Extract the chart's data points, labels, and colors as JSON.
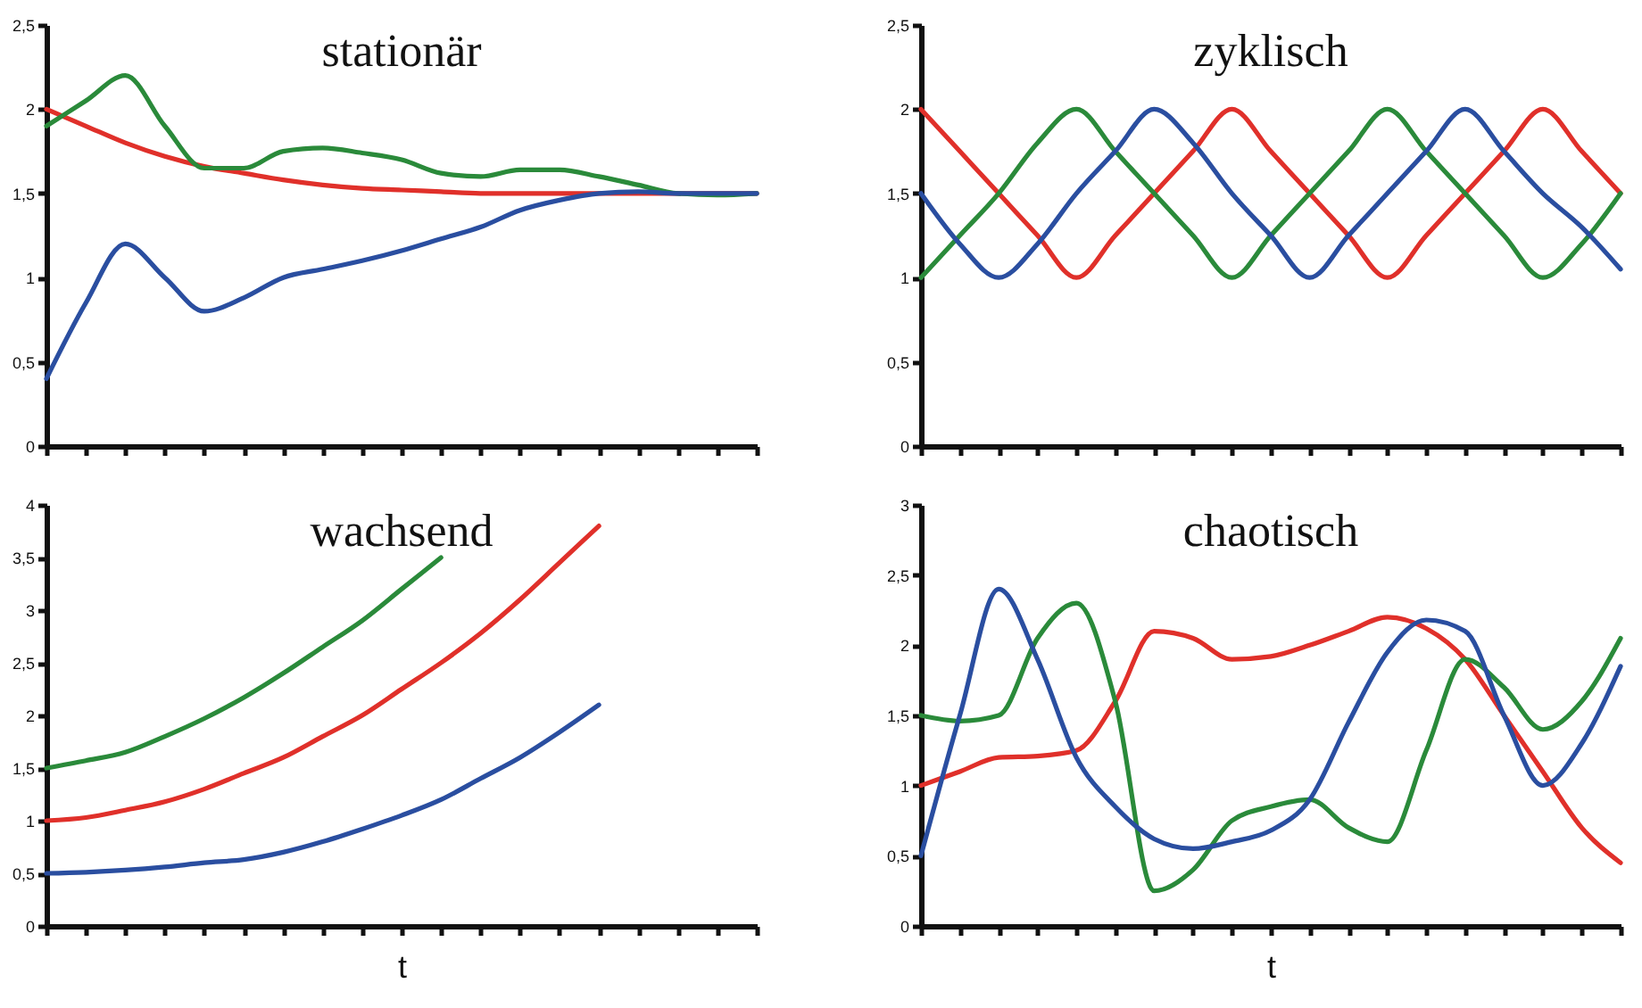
{
  "chart_data": [
    {
      "type": "line",
      "title": "stationär",
      "tick_labels": "y",
      "categories": [
        null,
        null,
        null,
        null,
        null,
        null,
        null,
        null,
        null,
        null,
        null,
        null,
        null,
        null,
        null,
        null,
        null,
        null,
        null
      ],
      "ylim": [
        0,
        2.5
      ],
      "yticks": [
        0,
        {
          "value": 0.5,
          "label": "0,5"
        },
        1,
        {
          "value": 1.5,
          "label": "1,5"
        },
        2,
        {
          "value": 2.5,
          "label": "2,5"
        }
      ],
      "series": [
        {
          "color": "#e0302a",
          "values": [
            2.0,
            1.9,
            1.8,
            1.72,
            1.66,
            1.62,
            1.58,
            1.55,
            1.53,
            1.52,
            1.51,
            1.5,
            1.5,
            1.5,
            1.5,
            1.5,
            1.5,
            1.5,
            1.5
          ]
        },
        {
          "color": "#2a8a3a",
          "values": [
            1.9,
            2.05,
            2.2,
            1.9,
            1.65,
            1.65,
            1.75,
            1.77,
            1.74,
            1.7,
            1.62,
            1.6,
            1.64,
            1.64,
            1.6,
            1.55,
            1.5,
            1.49,
            1.5
          ]
        },
        {
          "color": "#2a4ea0",
          "values": [
            0.4,
            0.85,
            1.2,
            1.0,
            0.8,
            0.88,
            1.0,
            1.05,
            1.1,
            1.16,
            1.23,
            1.3,
            1.4,
            1.46,
            1.5,
            1.51,
            1.5,
            1.5,
            1.5
          ]
        }
      ]
    },
    {
      "type": "line",
      "title": "zyklisch",
      "tick_labels": "y",
      "categories": [
        null,
        null,
        null,
        null,
        null,
        null,
        null,
        null,
        null,
        null,
        null,
        null,
        null,
        null,
        null,
        null,
        null,
        null,
        null
      ],
      "ylim": [
        0,
        2.5
      ],
      "yticks": [
        0,
        {
          "value": 0.5,
          "label": "0,5"
        },
        1,
        {
          "value": 1.5,
          "label": "1,5"
        },
        2,
        {
          "value": 2.5,
          "label": "2,5"
        }
      ],
      "series": [
        {
          "color": "#e0302a",
          "values": [
            2,
            1.75,
            1.5,
            1.25,
            1,
            1.25,
            1.5,
            1.75,
            2,
            1.75,
            1.5,
            1.25,
            1,
            1.25,
            1.5,
            1.75,
            2,
            1.75,
            1.5
          ]
        },
        {
          "color": "#2a8a3a",
          "values": [
            1,
            1.25,
            1.5,
            1.8,
            2,
            1.75,
            1.5,
            1.25,
            1,
            1.25,
            1.5,
            1.75,
            2,
            1.75,
            1.5,
            1.25,
            1,
            1.2,
            1.5
          ]
        },
        {
          "color": "#2a4ea0",
          "values": [
            1.5,
            1.2,
            1,
            1.2,
            1.5,
            1.75,
            2,
            1.8,
            1.5,
            1.25,
            1,
            1.25,
            1.5,
            1.75,
            2,
            1.75,
            1.5,
            1.3,
            1.05
          ]
        }
      ]
    },
    {
      "type": "line",
      "title": "wachsend",
      "xlabel": "t",
      "tick_labels": "y",
      "categories": [
        null,
        null,
        null,
        null,
        null,
        null,
        null,
        null,
        null,
        null,
        null,
        null,
        null,
        null,
        null,
        null,
        null,
        null,
        null
      ],
      "ylim": [
        0,
        4
      ],
      "yticks": [
        0,
        {
          "value": 0.5,
          "label": "0,5"
        },
        1,
        {
          "value": 1.5,
          "label": "1,5"
        },
        2,
        {
          "value": 2.5,
          "label": "2,5"
        },
        3,
        {
          "value": 3.5,
          "label": "3,5"
        },
        4
      ],
      "series": [
        {
          "color": "#2a8a3a",
          "values": [
            1.5,
            1.57,
            1.65,
            1.8,
            1.97,
            2.17,
            2.4,
            2.65,
            2.9,
            3.2,
            3.5,
            null,
            null,
            null,
            null,
            null,
            null,
            null,
            null
          ]
        },
        {
          "color": "#e0302a",
          "values": [
            1,
            1.03,
            1.1,
            1.18,
            1.3,
            1.45,
            1.6,
            1.8,
            2.0,
            2.25,
            2.5,
            2.78,
            3.1,
            3.45,
            3.8,
            null,
            null,
            null,
            null
          ]
        },
        {
          "color": "#2a4ea0",
          "values": [
            0.5,
            0.51,
            0.53,
            0.56,
            0.6,
            0.63,
            0.7,
            0.8,
            0.92,
            1.05,
            1.2,
            1.4,
            1.6,
            1.84,
            2.1,
            null,
            null,
            null,
            null
          ]
        }
      ]
    },
    {
      "type": "line",
      "title": "chaotisch",
      "xlabel": "t",
      "tick_labels": "y",
      "categories": [
        null,
        null,
        null,
        null,
        null,
        null,
        null,
        null,
        null,
        null,
        null,
        null,
        null,
        null,
        null,
        null,
        null,
        null,
        null
      ],
      "ylim": [
        0,
        3
      ],
      "yticks": [
        0,
        {
          "value": 0.5,
          "label": "0,5"
        },
        1,
        {
          "value": 1.5,
          "label": "1,5"
        },
        2,
        {
          "value": 2.5,
          "label": "2,5"
        },
        3
      ],
      "series": [
        {
          "color": "#e0302a",
          "values": [
            1.0,
            1.1,
            1.2,
            1.21,
            1.25,
            1.6,
            2.1,
            2.05,
            1.9,
            1.92,
            2.0,
            2.1,
            2.2,
            2.12,
            1.9,
            1.5,
            1.1,
            0.7,
            0.45
          ]
        },
        {
          "color": "#2a8a3a",
          "values": [
            1.5,
            1.46,
            1.5,
            2.05,
            2.3,
            1.6,
            0.25,
            0.4,
            0.75,
            0.85,
            0.9,
            0.7,
            0.6,
            1.25,
            1.9,
            1.7,
            1.4,
            1.6,
            2.05
          ]
        },
        {
          "color": "#2a4ea0",
          "values": [
            0.5,
            1.5,
            2.4,
            1.9,
            1.2,
            0.85,
            0.62,
            0.55,
            0.6,
            0.68,
            0.9,
            1.45,
            1.95,
            2.18,
            2.1,
            1.5,
            1.0,
            1.3,
            1.85
          ]
        }
      ]
    }
  ]
}
